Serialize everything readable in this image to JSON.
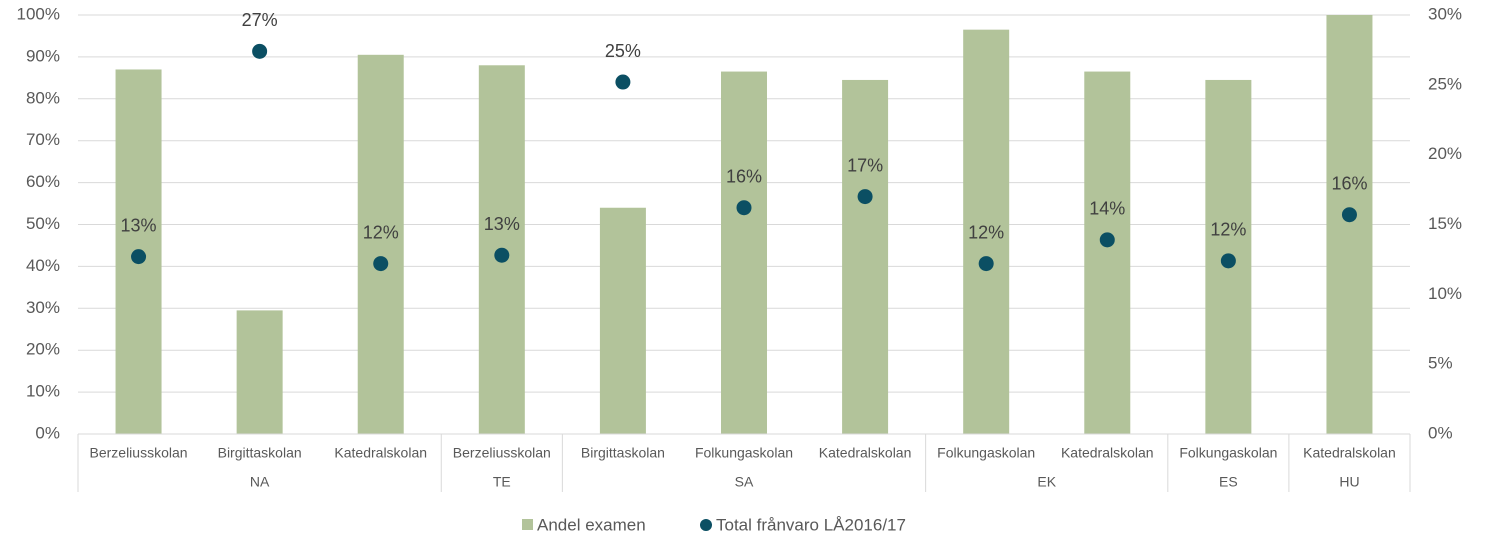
{
  "chart_data": {
    "type": "bar_dot",
    "groups": [
      {
        "name": "NA",
        "categories": [
          "Berzeliusskolan",
          "Birgittaskolan",
          "Katedralskolan"
        ]
      },
      {
        "name": "TE",
        "categories": [
          "Berzeliusskolan"
        ]
      },
      {
        "name": "SA",
        "categories": [
          "Birgittaskolan",
          "Folkungaskolan",
          "Katedralskolan"
        ]
      },
      {
        "name": "EK",
        "categories": [
          "Folkungaskolan",
          "Katedralskolan"
        ]
      },
      {
        "name": "ES",
        "categories": [
          "Folkungaskolan"
        ]
      },
      {
        "name": "HU",
        "categories": [
          "Katedralskolan"
        ]
      }
    ],
    "series": [
      {
        "name": "Andel examen",
        "color": "#b2c39a",
        "values": [
          87,
          29.5,
          90.5,
          88,
          54,
          86.5,
          84.5,
          96.5,
          86.5,
          84.5,
          100
        ]
      },
      {
        "name": "Total frånvaro LÅ2016/17",
        "color": "#0b4f63",
        "axis": "y2",
        "values": [
          12.7,
          27.4,
          12.2,
          12.8,
          25.2,
          16.2,
          17.0,
          12.2,
          13.9,
          12.4,
          15.7
        ],
        "value_labels": [
          "13%",
          "27%",
          "12%",
          "13%",
          "25%",
          "16%",
          "17%",
          "12%",
          "14%",
          "12%",
          "16%"
        ]
      }
    ],
    "ylim": [
      0,
      100
    ],
    "yticks": [
      {
        "value": 0,
        "label": "0%"
      },
      {
        "value": 10,
        "label": "10%"
      },
      {
        "value": 20,
        "label": "20%"
      },
      {
        "value": 30,
        "label": "30%"
      },
      {
        "value": 40,
        "label": "40%"
      },
      {
        "value": 50,
        "label": "50%"
      },
      {
        "value": 60,
        "label": "60%"
      },
      {
        "value": 70,
        "label": "70%"
      },
      {
        "value": 80,
        "label": "80%"
      },
      {
        "value": 90,
        "label": "90%"
      },
      {
        "value": 100,
        "label": "100%"
      }
    ],
    "y2lim": [
      0,
      30
    ],
    "y2ticks": [
      {
        "value": 0,
        "label": "0%"
      },
      {
        "value": 5,
        "label": "5%"
      },
      {
        "value": 10,
        "label": "10%"
      },
      {
        "value": 15,
        "label": "15%"
      },
      {
        "value": 20,
        "label": "20%"
      },
      {
        "value": 25,
        "label": "25%"
      },
      {
        "value": 30,
        "label": "30%"
      }
    ],
    "grid": true,
    "legend": "bottom"
  }
}
